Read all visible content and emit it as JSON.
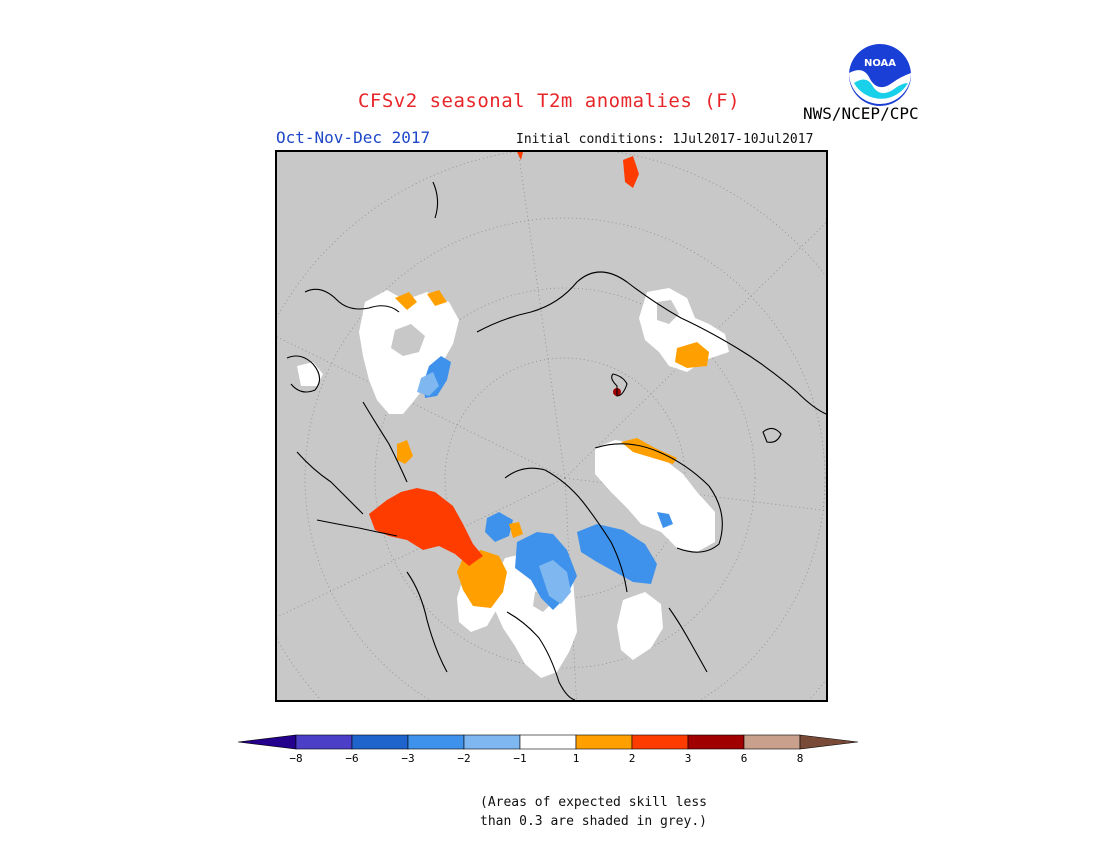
{
  "header": {
    "title": "CFSv2 seasonal T2m anomalies (F)",
    "season": "Oct-Nov-Dec 2017",
    "initial_conditions": "Initial conditions: 1Jul2017-10Jul2017",
    "organization": "NWS/NCEP/CPC",
    "logo_text": "NOAA"
  },
  "map": {
    "projection": "polar stereographic (north pole)",
    "land_outline_color": "#000000",
    "low_skill_color": "#c8c8c8"
  },
  "colorbar": {
    "ticks": [
      "-8",
      "-6",
      "-3",
      "-2",
      "-1",
      "1",
      "2",
      "3",
      "6",
      "8"
    ],
    "colors": [
      "#24008c",
      "#4b3fc8",
      "#1f64cd",
      "#3f92eb",
      "#7fb7f0",
      "#ffffff",
      "#ffa000",
      "#ff3c00",
      "#a00000",
      "#c9a08c",
      "#7a4a38"
    ]
  },
  "footnote": {
    "line1": "(Areas of expected skill less",
    "line2": "than 0.3 are shaded in grey.)"
  }
}
